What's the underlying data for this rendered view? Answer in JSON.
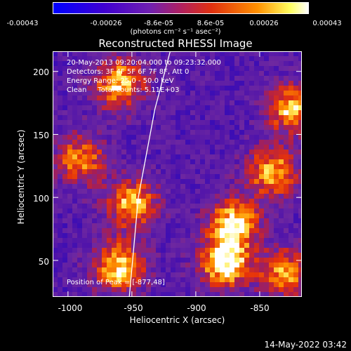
{
  "colorbar": {
    "ticks": [
      "-0.00043",
      "-0.00026",
      "-8.6e-05",
      "8.6e-05",
      "0.00026",
      "0.00043"
    ],
    "units_label": "(photons cm⁻² s⁻¹ asec⁻²)",
    "colors": [
      "#0000ff",
      "#5000c8",
      "#6a2cc8",
      "#a8308c",
      "#e03018",
      "#ffa000",
      "#ffff80",
      "#ffffff"
    ]
  },
  "title": "Reconstructed RHESSI Image",
  "annotations": {
    "time_range": "20-May-2013 09:20:04.000 to 09:23:32.000",
    "detectors": "Detectors: 3F 4F 5F 6F 7F 8F, Att 0",
    "energy_range": "Energy Range: 25.0 - 50.0 keV",
    "clean_counts": "Clean     Total counts: 5.11E+03",
    "peak_position": "Position of Peak = [-877,48]"
  },
  "axes": {
    "xlabel": "Heliocentric X (arcsec)",
    "ylabel": "Heliocentric Y (arcsec)",
    "x_ticks": [
      "-1000",
      "-950",
      "-900",
      "-850"
    ],
    "y_ticks": [
      "50",
      "100",
      "150",
      "200"
    ]
  },
  "footer": {
    "timestamp": "14-May-2022 03:42"
  },
  "chart_data": {
    "type": "heatmap",
    "title": "Reconstructed RHESSI Image",
    "xlabel": "Heliocentric X (arcsec)",
    "ylabel": "Heliocentric Y (arcsec)",
    "xlim": [
      -1012,
      -817
    ],
    "ylim": [
      21,
      216
    ],
    "x_ticks": [
      -1000,
      -950,
      -900,
      -850
    ],
    "y_ticks": [
      50,
      100,
      150,
      200
    ],
    "color_range": [
      -0.00043,
      0.00043
    ],
    "grid": false,
    "limb_line": [
      [
        -952,
        21
      ],
      [
        -945,
        100
      ],
      [
        -932,
        170
      ],
      [
        -920,
        216
      ]
    ],
    "bright_regions": [
      {
        "x": -960,
        "y": 190,
        "level": 0.85
      },
      {
        "x": -990,
        "y": 130,
        "level": 0.7
      },
      {
        "x": -950,
        "y": 95,
        "level": 0.8
      },
      {
        "x": -960,
        "y": 45,
        "level": 0.9
      },
      {
        "x": -877,
        "y": 48,
        "level": 1.0
      },
      {
        "x": -870,
        "y": 80,
        "level": 0.9
      },
      {
        "x": -840,
        "y": 120,
        "level": 0.8
      },
      {
        "x": -825,
        "y": 170,
        "level": 0.8
      },
      {
        "x": -830,
        "y": 40,
        "level": 0.75
      }
    ]
  }
}
